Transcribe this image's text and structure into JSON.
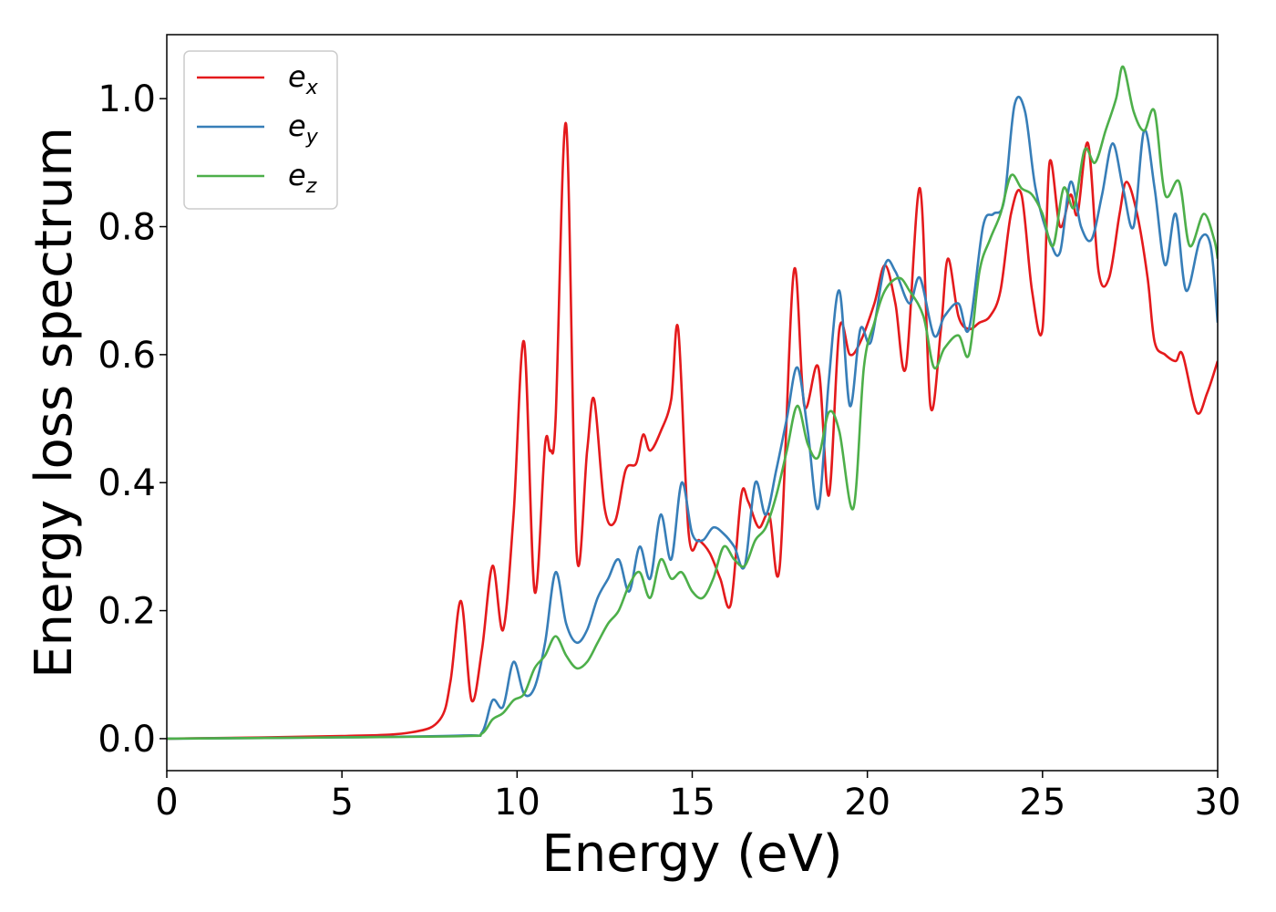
{
  "chart_data": {
    "type": "line",
    "xlabel": "Energy (eV)",
    "ylabel": "Energy loss spectrum",
    "xlim": [
      0,
      30
    ],
    "ylim": [
      -0.05,
      1.1
    ],
    "xticks": [
      0,
      5,
      10,
      15,
      20,
      25,
      30
    ],
    "xtick_labels": [
      "0",
      "5",
      "10",
      "15",
      "20",
      "25",
      "30"
    ],
    "yticks": [
      0.0,
      0.2,
      0.4,
      0.6,
      0.8,
      1.0
    ],
    "ytick_labels": [
      "0.0",
      "0.2",
      "0.4",
      "0.6",
      "0.8",
      "1.0"
    ],
    "grid": false,
    "legend_position": "top-left",
    "series": [
      {
        "name": "e_x",
        "name_base": "e",
        "name_sub": "x",
        "color": "#e41a1c",
        "x": [
          0,
          5,
          7,
          7.8,
          8.1,
          8.4,
          8.7,
          9.0,
          9.3,
          9.6,
          9.9,
          10.2,
          10.5,
          10.8,
          10.95,
          11.1,
          11.4,
          11.7,
          12.0,
          12.2,
          12.5,
          12.8,
          13.1,
          13.4,
          13.6,
          13.8,
          14.1,
          14.4,
          14.6,
          14.9,
          15.2,
          15.5,
          15.8,
          16.1,
          16.4,
          16.6,
          16.9,
          17.2,
          17.5,
          17.9,
          18.2,
          18.6,
          18.9,
          19.2,
          19.5,
          19.8,
          20.2,
          20.5,
          20.8,
          21.1,
          21.5,
          21.8,
          22.1,
          22.3,
          22.6,
          22.9,
          23.2,
          23.5,
          23.8,
          24.1,
          24.4,
          24.7,
          25.0,
          25.2,
          25.5,
          25.8,
          26.0,
          26.3,
          26.6,
          26.9,
          27.2,
          27.4,
          27.7,
          28.0,
          28.2,
          28.5,
          28.8,
          29.0,
          29.4,
          29.7,
          30.0
        ],
        "values": [
          0.0,
          0.004,
          0.01,
          0.03,
          0.09,
          0.215,
          0.06,
          0.14,
          0.27,
          0.17,
          0.35,
          0.62,
          0.23,
          0.46,
          0.45,
          0.5,
          0.96,
          0.29,
          0.45,
          0.53,
          0.36,
          0.34,
          0.42,
          0.43,
          0.475,
          0.45,
          0.48,
          0.53,
          0.64,
          0.32,
          0.31,
          0.29,
          0.25,
          0.21,
          0.38,
          0.37,
          0.33,
          0.35,
          0.27,
          0.73,
          0.52,
          0.58,
          0.38,
          0.64,
          0.6,
          0.62,
          0.68,
          0.74,
          0.68,
          0.58,
          0.86,
          0.52,
          0.64,
          0.75,
          0.66,
          0.64,
          0.65,
          0.66,
          0.7,
          0.82,
          0.85,
          0.7,
          0.64,
          0.9,
          0.8,
          0.85,
          0.82,
          0.93,
          0.73,
          0.72,
          0.82,
          0.87,
          0.82,
          0.72,
          0.62,
          0.6,
          0.59,
          0.6,
          0.51,
          0.54,
          0.59
        ]
      },
      {
        "name": "e_y",
        "name_base": "e",
        "name_sub": "y",
        "color": "#377eb8",
        "x": [
          0,
          5,
          8.5,
          9.0,
          9.3,
          9.6,
          9.9,
          10.2,
          10.5,
          10.8,
          11.1,
          11.4,
          11.7,
          12.0,
          12.3,
          12.6,
          12.9,
          13.2,
          13.5,
          13.8,
          14.1,
          14.4,
          14.7,
          15.0,
          15.3,
          15.6,
          15.9,
          16.2,
          16.5,
          16.8,
          17.1,
          17.4,
          17.7,
          18.0,
          18.3,
          18.6,
          18.9,
          19.2,
          19.5,
          19.8,
          20.1,
          20.5,
          20.8,
          21.2,
          21.5,
          21.9,
          22.2,
          22.6,
          22.9,
          23.3,
          23.6,
          23.9,
          24.2,
          24.5,
          24.8,
          25.2,
          25.5,
          25.8,
          26.1,
          26.4,
          26.7,
          27.0,
          27.3,
          27.6,
          27.9,
          28.2,
          28.5,
          28.8,
          29.1,
          29.5,
          29.8,
          30.0
        ],
        "values": [
          0.0,
          0.002,
          0.005,
          0.01,
          0.06,
          0.05,
          0.12,
          0.07,
          0.08,
          0.15,
          0.26,
          0.18,
          0.15,
          0.17,
          0.22,
          0.25,
          0.28,
          0.23,
          0.3,
          0.25,
          0.35,
          0.28,
          0.4,
          0.32,
          0.31,
          0.33,
          0.32,
          0.3,
          0.27,
          0.4,
          0.35,
          0.42,
          0.5,
          0.58,
          0.48,
          0.36,
          0.56,
          0.7,
          0.52,
          0.64,
          0.62,
          0.74,
          0.73,
          0.68,
          0.72,
          0.63,
          0.66,
          0.68,
          0.64,
          0.8,
          0.82,
          0.84,
          0.99,
          0.98,
          0.86,
          0.78,
          0.76,
          0.87,
          0.8,
          0.78,
          0.85,
          0.93,
          0.86,
          0.8,
          0.95,
          0.86,
          0.74,
          0.82,
          0.7,
          0.78,
          0.77,
          0.65
        ]
      },
      {
        "name": "e_z",
        "name_base": "e",
        "name_sub": "z",
        "color": "#4daf4a",
        "x": [
          0,
          5,
          8.5,
          9.0,
          9.3,
          9.6,
          9.9,
          10.2,
          10.5,
          10.8,
          11.1,
          11.4,
          11.7,
          12.0,
          12.3,
          12.6,
          12.9,
          13.2,
          13.5,
          13.8,
          14.1,
          14.4,
          14.7,
          15.0,
          15.3,
          15.6,
          15.9,
          16.2,
          16.5,
          16.8,
          17.1,
          17.4,
          17.7,
          18.0,
          18.3,
          18.6,
          18.9,
          19.2,
          19.6,
          19.9,
          20.2,
          20.5,
          20.9,
          21.2,
          21.6,
          21.9,
          22.2,
          22.6,
          22.9,
          23.2,
          23.5,
          23.8,
          24.1,
          24.4,
          24.7,
          25.0,
          25.3,
          25.6,
          25.9,
          26.2,
          26.5,
          26.8,
          27.1,
          27.3,
          27.6,
          27.9,
          28.2,
          28.5,
          28.9,
          29.2,
          29.6,
          29.9,
          30.0
        ],
        "values": [
          0.0,
          0.002,
          0.004,
          0.008,
          0.03,
          0.04,
          0.06,
          0.07,
          0.11,
          0.13,
          0.16,
          0.13,
          0.11,
          0.12,
          0.15,
          0.18,
          0.2,
          0.24,
          0.26,
          0.22,
          0.28,
          0.25,
          0.26,
          0.23,
          0.22,
          0.25,
          0.3,
          0.28,
          0.27,
          0.31,
          0.33,
          0.38,
          0.45,
          0.52,
          0.46,
          0.44,
          0.51,
          0.48,
          0.36,
          0.58,
          0.65,
          0.7,
          0.72,
          0.7,
          0.66,
          0.58,
          0.61,
          0.63,
          0.6,
          0.73,
          0.78,
          0.82,
          0.88,
          0.86,
          0.85,
          0.82,
          0.77,
          0.86,
          0.83,
          0.92,
          0.9,
          0.95,
          1.0,
          1.05,
          0.98,
          0.95,
          0.98,
          0.85,
          0.87,
          0.77,
          0.82,
          0.78,
          0.75
        ]
      }
    ]
  }
}
